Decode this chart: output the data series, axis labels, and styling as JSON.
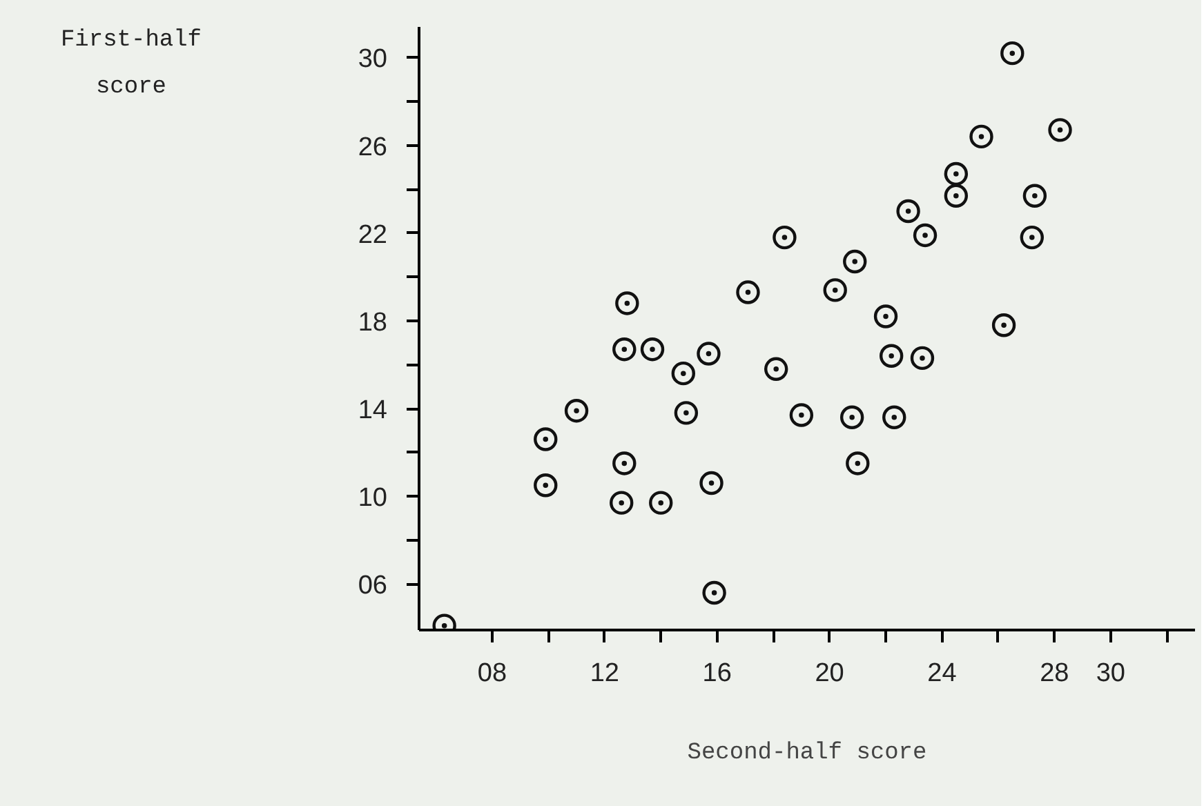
{
  "chart_data": {
    "type": "scatter",
    "xlabel": "Second-half score",
    "annotations": [
      "First-half\nscore"
    ],
    "x": [
      6.3,
      9.9,
      9.9,
      11.0,
      12.6,
      12.7,
      12.7,
      12.8,
      13.7,
      14.0,
      14.8,
      14.9,
      15.7,
      15.8,
      15.9,
      17.1,
      18.1,
      18.4,
      19.0,
      20.2,
      20.8,
      20.9,
      21.0,
      22.0,
      22.2,
      22.3,
      22.8,
      23.3,
      23.4,
      24.5,
      24.5,
      25.4,
      26.2,
      26.5,
      27.2,
      27.3,
      28.2
    ],
    "series": [
      {
        "color": "#111111",
        "values": [
          4.1,
          10.5,
          12.6,
          13.9,
          9.7,
          11.5,
          16.7,
          18.8,
          16.7,
          9.7,
          15.6,
          13.8,
          16.5,
          10.6,
          5.6,
          19.3,
          15.8,
          21.8,
          13.7,
          19.4,
          13.6,
          20.7,
          11.5,
          18.2,
          16.4,
          13.6,
          23.0,
          16.3,
          21.9,
          24.7,
          23.7,
          26.4,
          17.8,
          30.2,
          21.8,
          23.7,
          26.7
        ]
      }
    ],
    "xlim": [
      5.4,
      33.0
    ],
    "ylim": [
      3.9,
      31.4
    ],
    "xticks": [
      {
        "value": 8,
        "label": "08"
      },
      {
        "value": 10,
        "label": null
      },
      12,
      {
        "value": 14,
        "label": null
      },
      16,
      {
        "value": 18,
        "label": null
      },
      20,
      {
        "value": 22,
        "label": null
      },
      24,
      {
        "value": 26,
        "label": null
      },
      28,
      30,
      {
        "value": 32,
        "label": null
      }
    ],
    "yticks": [
      {
        "value": 6,
        "label": "06"
      },
      {
        "value": 8,
        "label": null
      },
      10,
      {
        "value": 12,
        "label": null
      },
      14,
      {
        "value": 16,
        "label": null
      },
      18,
      {
        "value": 20,
        "label": null
      },
      22,
      {
        "value": 24,
        "label": null
      },
      26,
      {
        "value": 28,
        "label": null
      },
      30
    ],
    "marker": "circle",
    "grid": false
  }
}
